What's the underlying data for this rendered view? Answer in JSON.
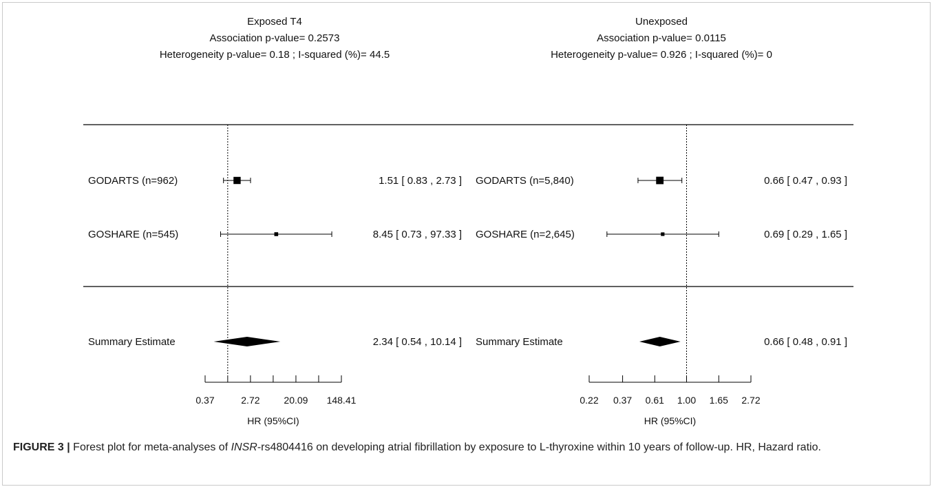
{
  "chart_data": [
    {
      "type": "forest",
      "title": "Exposed T4",
      "subtitles": [
        "Association p-value= 0.2573",
        "Heterogeneity p-value= 0.18 ; I-squared (%)= 44.5"
      ],
      "xlabel": "HR (95%CI)",
      "x_scale": "log",
      "x_ticks": [
        0.37,
        1.0,
        2.72,
        7.39,
        20.09,
        54.6,
        148.41
      ],
      "x_tick_labels": [
        "0.37",
        "",
        "2.72",
        "",
        "20.09",
        "",
        "148.41"
      ],
      "xlim": [
        0.37,
        148.41
      ],
      "reference_line": 1.0,
      "studies": [
        {
          "label": "GODARTS (n=962)",
          "hr": 1.51,
          "lower": 0.83,
          "upper": 2.73,
          "text": "1.51 [ 0.83 ,  2.73 ]",
          "weight": 0.8
        },
        {
          "label": "GOSHARE (n=545)",
          "hr": 8.45,
          "lower": 0.73,
          "upper": 97.33,
          "text": "8.45 [ 0.73 , 97.33 ]",
          "weight": 0.2
        }
      ],
      "summary": {
        "label": "Summary Estimate",
        "hr": 2.34,
        "lower": 0.54,
        "upper": 10.14,
        "text": "2.34 [ 0.54 , 10.14 ]"
      }
    },
    {
      "type": "forest",
      "title": "Unexposed",
      "subtitles": [
        "Association p-value= 0.0115",
        "Heterogeneity p-value= 0.926 ; I-squared (%)= 0"
      ],
      "xlabel": "HR (95%CI)",
      "x_scale": "log",
      "x_ticks": [
        0.22,
        0.37,
        0.61,
        1.0,
        1.65,
        2.72
      ],
      "x_tick_labels": [
        "0.22",
        "0.37",
        "0.61",
        "1.00",
        "1.65",
        "2.72"
      ],
      "xlim": [
        0.22,
        2.72
      ],
      "reference_line": 1.0,
      "studies": [
        {
          "label": "GODARTS (n=5,840)",
          "hr": 0.66,
          "lower": 0.47,
          "upper": 0.93,
          "text": "0.66 [ 0.47 , 0.93 ]",
          "weight": 0.85
        },
        {
          "label": "GOSHARE (n=2,645)",
          "hr": 0.69,
          "lower": 0.29,
          "upper": 1.65,
          "text": "0.69 [ 0.29 , 1.65 ]",
          "weight": 0.15
        }
      ],
      "summary": {
        "label": "Summary Estimate",
        "hr": 0.66,
        "lower": 0.48,
        "upper": 0.91,
        "text": "0.66 [ 0.48 , 0.91 ]"
      }
    }
  ],
  "caption": {
    "figure_label": "FIGURE 3 |",
    "text_before_gene": " Forest plot for meta-analyses of ",
    "gene": "INSR",
    "text_after_gene": "-rs4804416 on developing atrial fibrillation by exposure to L-thyroxine within 10 years of follow-up. HR, Hazard ratio."
  }
}
